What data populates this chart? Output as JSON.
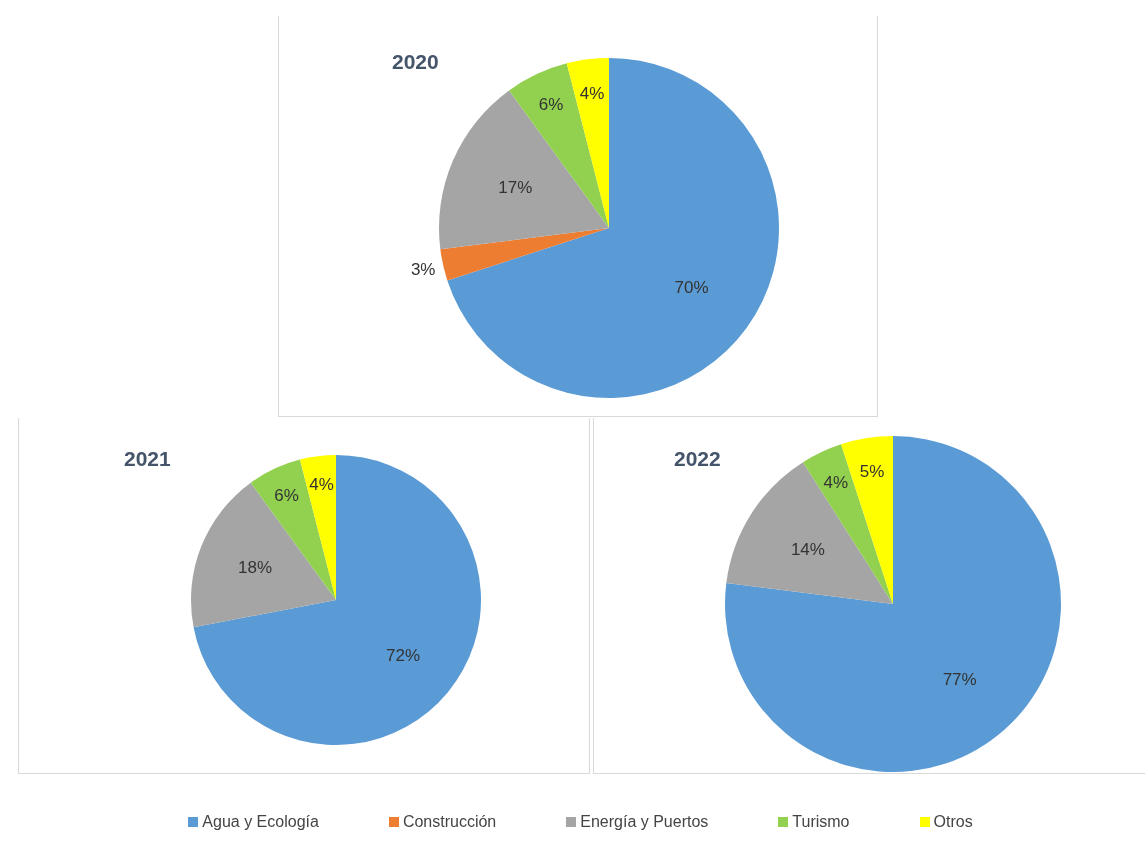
{
  "chart_data": [
    {
      "type": "pie",
      "title": "2020",
      "categories": [
        "Agua y Ecología",
        "Construcción",
        "Energía y Puertos",
        "Turismo",
        "Otros"
      ],
      "values": [
        70,
        3,
        17,
        6,
        4
      ],
      "value_labels": [
        "70%",
        "3%",
        "17%",
        "6%",
        "4%"
      ],
      "colors": [
        "#5b9bd5",
        "#ed7d31",
        "#a5a5a5",
        "#92d050",
        "#ffff00"
      ],
      "legend": "bottom"
    },
    {
      "type": "pie",
      "title": "2021",
      "categories": [
        null,
        null,
        null,
        null
      ],
      "values": [
        72,
        18,
        6,
        4
      ],
      "value_labels": [
        "72%",
        "18%",
        "6%",
        "4%"
      ],
      "colors": [
        "#5b9bd5",
        "#a5a5a5",
        "#92d050",
        "#ffff00"
      ]
    },
    {
      "type": "pie",
      "title": "2022",
      "categories": [
        null,
        null,
        null,
        null
      ],
      "values": [
        77,
        14,
        4,
        5
      ],
      "value_labels": [
        "77%",
        "14%",
        "4%",
        "5%"
      ],
      "colors": [
        "#5b9bd5",
        "#a5a5a5",
        "#92d050",
        "#ffff00"
      ]
    }
  ]
}
